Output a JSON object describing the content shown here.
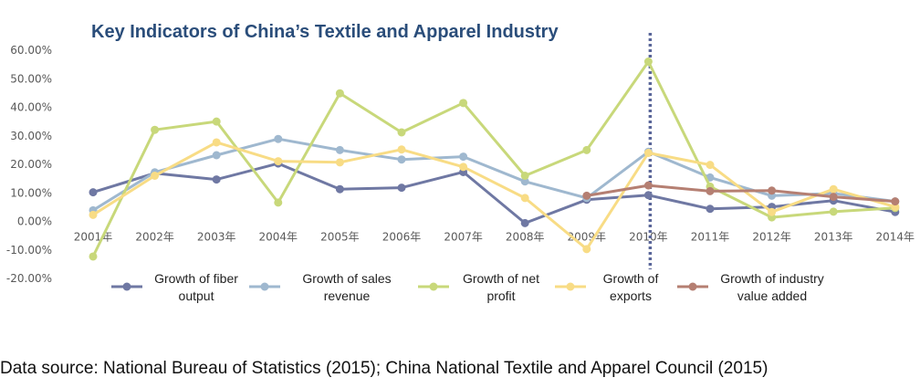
{
  "chart_data": {
    "type": "line",
    "title": "Key Indicators of China’s Textile and Apparel Industry",
    "categories": [
      "2001年",
      "2002年",
      "2003年",
      "2004年",
      "2005年",
      "2006年",
      "2007年",
      "2008年",
      "2009年",
      "2010年",
      "2011年",
      "2012年",
      "2013年",
      "2014年"
    ],
    "y_ticks": [
      "60.00%",
      "50.00%",
      "40.00%",
      "30.00%",
      "20.00%",
      "10.00%",
      "0.00%",
      "-10.00%",
      "-20.00%"
    ],
    "ylim": [
      -20,
      60
    ],
    "unit": "%",
    "marker_line_category": "2010年",
    "series": [
      {
        "name": "Growth of fiber output",
        "legend_lines": [
          "Growth of fiber",
          "output"
        ],
        "color": "#6f78a3",
        "values": [
          10.2,
          16.9,
          14.7,
          20.3,
          11.3,
          11.8,
          17.3,
          -0.6,
          7.6,
          9.2,
          4.4,
          5.1,
          7.3,
          3.3
        ]
      },
      {
        "name": "Growth of sales revenue",
        "legend_lines": [
          "Growth of sales",
          "revenue"
        ],
        "color": "#9fb8cf",
        "values": [
          3.9,
          17.2,
          23.2,
          28.9,
          25.0,
          21.7,
          22.7,
          14.0,
          8.2,
          24.4,
          15.4,
          9.0,
          9.8,
          7.0
        ]
      },
      {
        "name": "Growth of net profit",
        "legend_lines": [
          "Growth of net",
          "profit"
        ],
        "color": "#c8d87a",
        "values": [
          -12.3,
          32.1,
          35.0,
          6.6,
          44.9,
          31.2,
          41.5,
          16.0,
          25.0,
          56.0,
          12.2,
          1.4,
          3.4,
          4.7
        ]
      },
      {
        "name": "Growth of exports",
        "legend_lines": [
          "Growth of",
          "exports"
        ],
        "color": "#f8dc85",
        "values": [
          2.3,
          16.0,
          27.7,
          21.1,
          20.7,
          25.2,
          19.1,
          8.2,
          -9.7,
          24.0,
          19.8,
          3.3,
          11.3,
          5.1
        ]
      },
      {
        "name": "Growth of industry value added",
        "legend_lines": [
          "Growth of industry",
          "value added"
        ],
        "color": "#b57f72",
        "values": [
          null,
          null,
          null,
          null,
          null,
          null,
          null,
          null,
          9.0,
          12.6,
          10.6,
          10.8,
          8.6,
          7.0
        ]
      }
    ]
  },
  "source_text": "Data source: National Bureau of Statistics (2015); China National Textile and Apparel Council (2015)"
}
